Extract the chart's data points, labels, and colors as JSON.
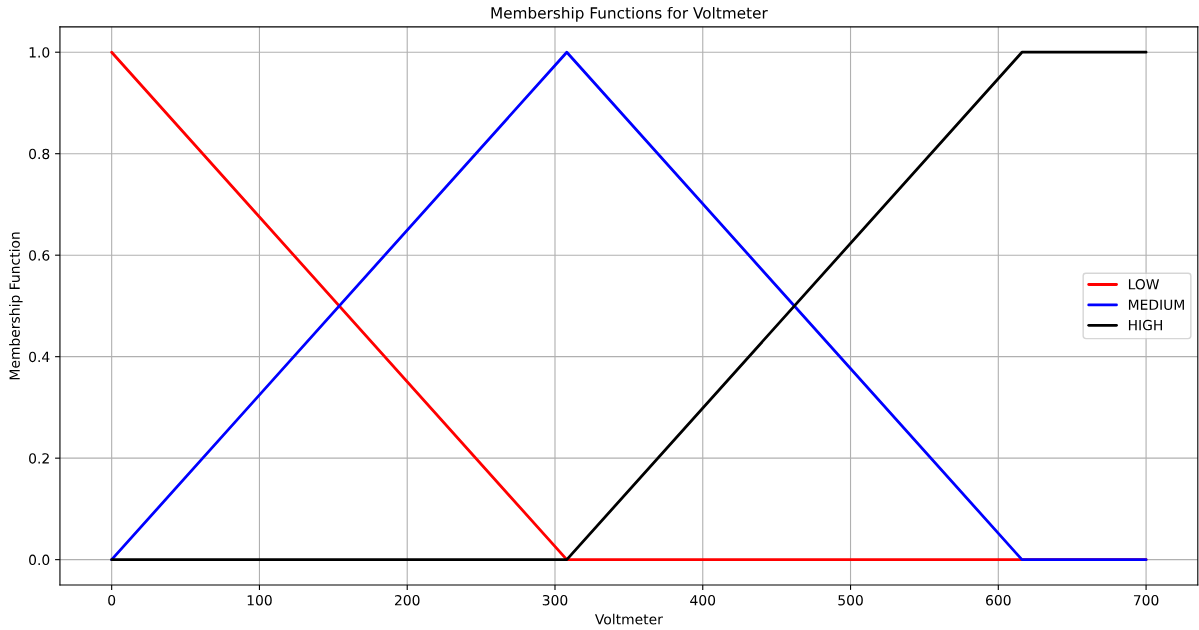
{
  "chart_data": {
    "type": "line",
    "title": "Membership Functions for Voltmeter",
    "xlabel": "Voltmeter",
    "ylabel": "Membership Function",
    "x": [
      0,
      308,
      616,
      700
    ],
    "series": [
      {
        "name": "LOW",
        "color": "#ff0000",
        "values": [
          1,
          0,
          0,
          0
        ]
      },
      {
        "name": "MEDIUM",
        "color": "#0000ff",
        "values": [
          0,
          1,
          0,
          0
        ]
      },
      {
        "name": "HIGH",
        "color": "#000000",
        "values": [
          0,
          0,
          1,
          1
        ]
      }
    ],
    "xlim": [
      -35,
      735
    ],
    "ylim": [
      -0.05,
      1.05
    ],
    "xticks": [
      0,
      100,
      200,
      300,
      400,
      500,
      600,
      700
    ],
    "yticks": [
      {
        "value": 0,
        "label": "0.0"
      },
      {
        "value": 0.2,
        "label": "0.2"
      },
      {
        "value": 0.4,
        "label": "0.4"
      },
      {
        "value": 0.6,
        "label": "0.6"
      },
      {
        "value": 0.8,
        "label": "0.8"
      },
      {
        "value": 1,
        "label": "1.0"
      }
    ],
    "grid": true,
    "legend": "right",
    "line_style": "solid"
  }
}
